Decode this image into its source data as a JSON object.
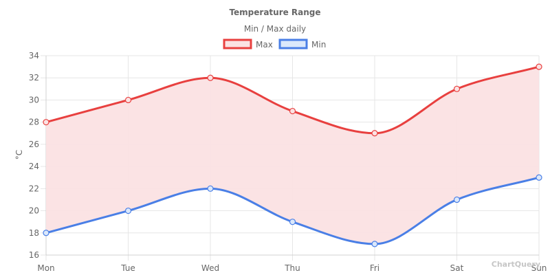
{
  "chart_data": {
    "type": "line",
    "title": "Temperature Range",
    "subtitle": "Min / Max daily",
    "xlabel": "",
    "ylabel": "°C",
    "categories": [
      "Mon",
      "Tue",
      "Wed",
      "Thu",
      "Fri",
      "Sat",
      "Sun"
    ],
    "ylim": [
      16,
      34
    ],
    "yticks": [
      16,
      18,
      20,
      22,
      24,
      26,
      28,
      30,
      32,
      34
    ],
    "grid": true,
    "legend_position": "top",
    "fill_between": "Max to Min",
    "series": [
      {
        "name": "Max",
        "values": [
          28,
          30,
          32,
          29,
          27,
          31,
          33
        ],
        "color": "#e8403f",
        "fill": "#fbe2e3"
      },
      {
        "name": "Min",
        "values": [
          18,
          20,
          22,
          19,
          17,
          21,
          23
        ],
        "color": "#4a7fe6",
        "fill": "#dbe8fb"
      }
    ]
  },
  "watermark": "ChartQuery"
}
